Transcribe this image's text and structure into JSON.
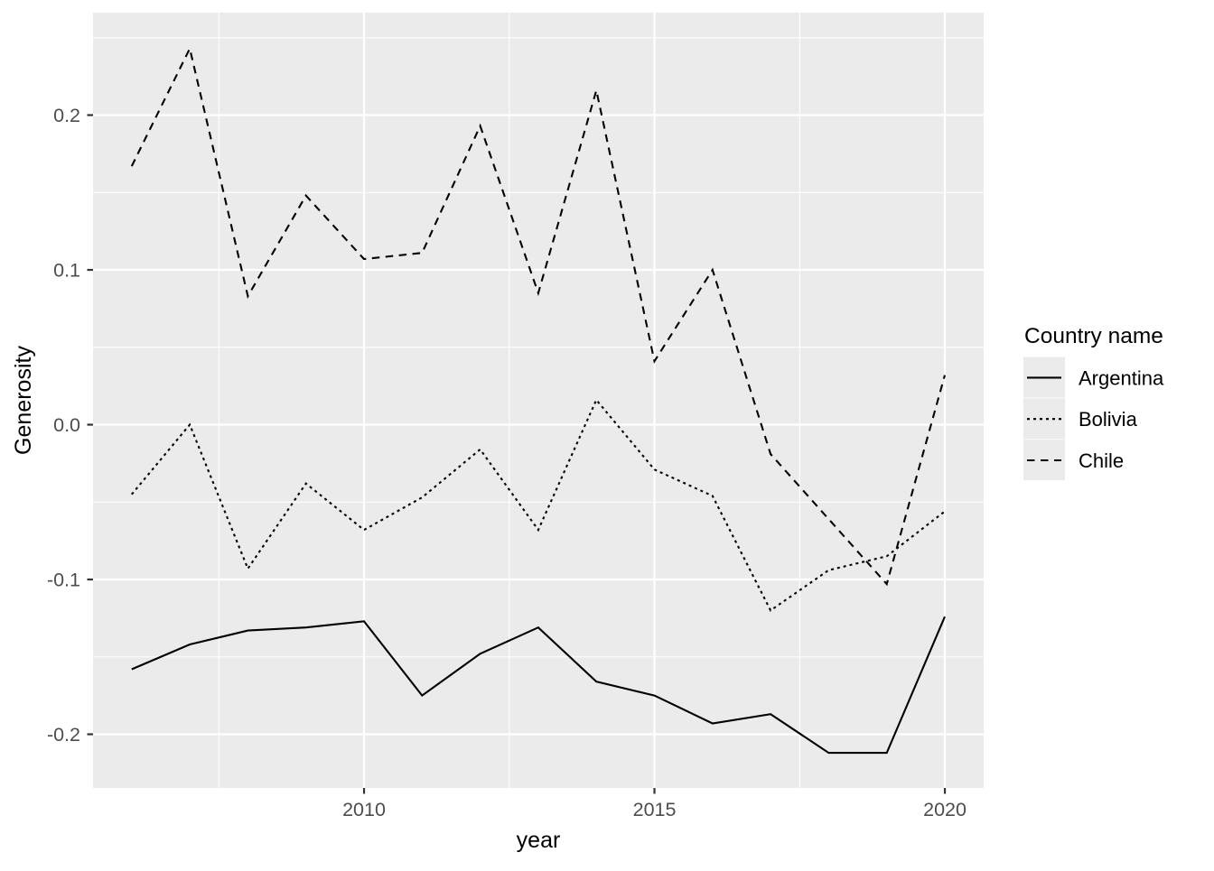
{
  "chart_data": {
    "type": "line",
    "title": "",
    "xlabel": "year",
    "ylabel": "Generosity",
    "legend_title": "Country name",
    "legend_position": "right",
    "grid": true,
    "panel_bg": "#EBEBEB",
    "grid_color": "#FFFFFF",
    "tick_label_color": "#4D4D4D",
    "axis_title_color": "#000000",
    "line_color": "#000000",
    "xlim": [
      2005.334,
      2020.668
    ],
    "ylim": [
      -0.2347,
      0.2662
    ],
    "x_ticks": {
      "values": [
        2010,
        2015,
        2020
      ],
      "labels": [
        "2010",
        "2015",
        "2020"
      ]
    },
    "y_ticks": {
      "values": [
        0.2,
        0.1,
        0.0,
        -0.1,
        -0.2
      ],
      "labels": [
        "0.2",
        "0.1",
        "0.0",
        "-0.1",
        "-0.2"
      ]
    },
    "x_minor": [
      2007.5,
      2012.5,
      2017.5
    ],
    "y_minor": [
      0.25,
      0.15,
      0.05,
      -0.05,
      -0.15
    ],
    "x": [
      2006,
      2007,
      2008,
      2009,
      2010,
      2011,
      2012,
      2013,
      2014,
      2015,
      2016,
      2017,
      2018,
      2019,
      2020
    ],
    "series": [
      {
        "name": "Argentina",
        "linetype": "solid",
        "values": [
          -0.158,
          -0.142,
          -0.133,
          -0.131,
          -0.127,
          -0.175,
          -0.148,
          -0.131,
          -0.166,
          -0.175,
          -0.193,
          -0.187,
          -0.212,
          -0.212,
          -0.124
        ]
      },
      {
        "name": "Bolivia",
        "linetype": "dotted",
        "values": [
          -0.045,
          0.0,
          -0.093,
          -0.038,
          -0.068,
          -0.047,
          -0.016,
          -0.068,
          0.016,
          -0.029,
          -0.046,
          -0.12,
          -0.094,
          -0.085,
          -0.056
        ]
      },
      {
        "name": "Chile",
        "linetype": "dashed",
        "values": [
          0.167,
          0.243,
          0.083,
          0.148,
          0.107,
          0.111,
          0.193,
          0.085,
          0.216,
          0.041,
          0.1,
          -0.019,
          -0.061,
          -0.103,
          0.032
        ]
      }
    ]
  }
}
